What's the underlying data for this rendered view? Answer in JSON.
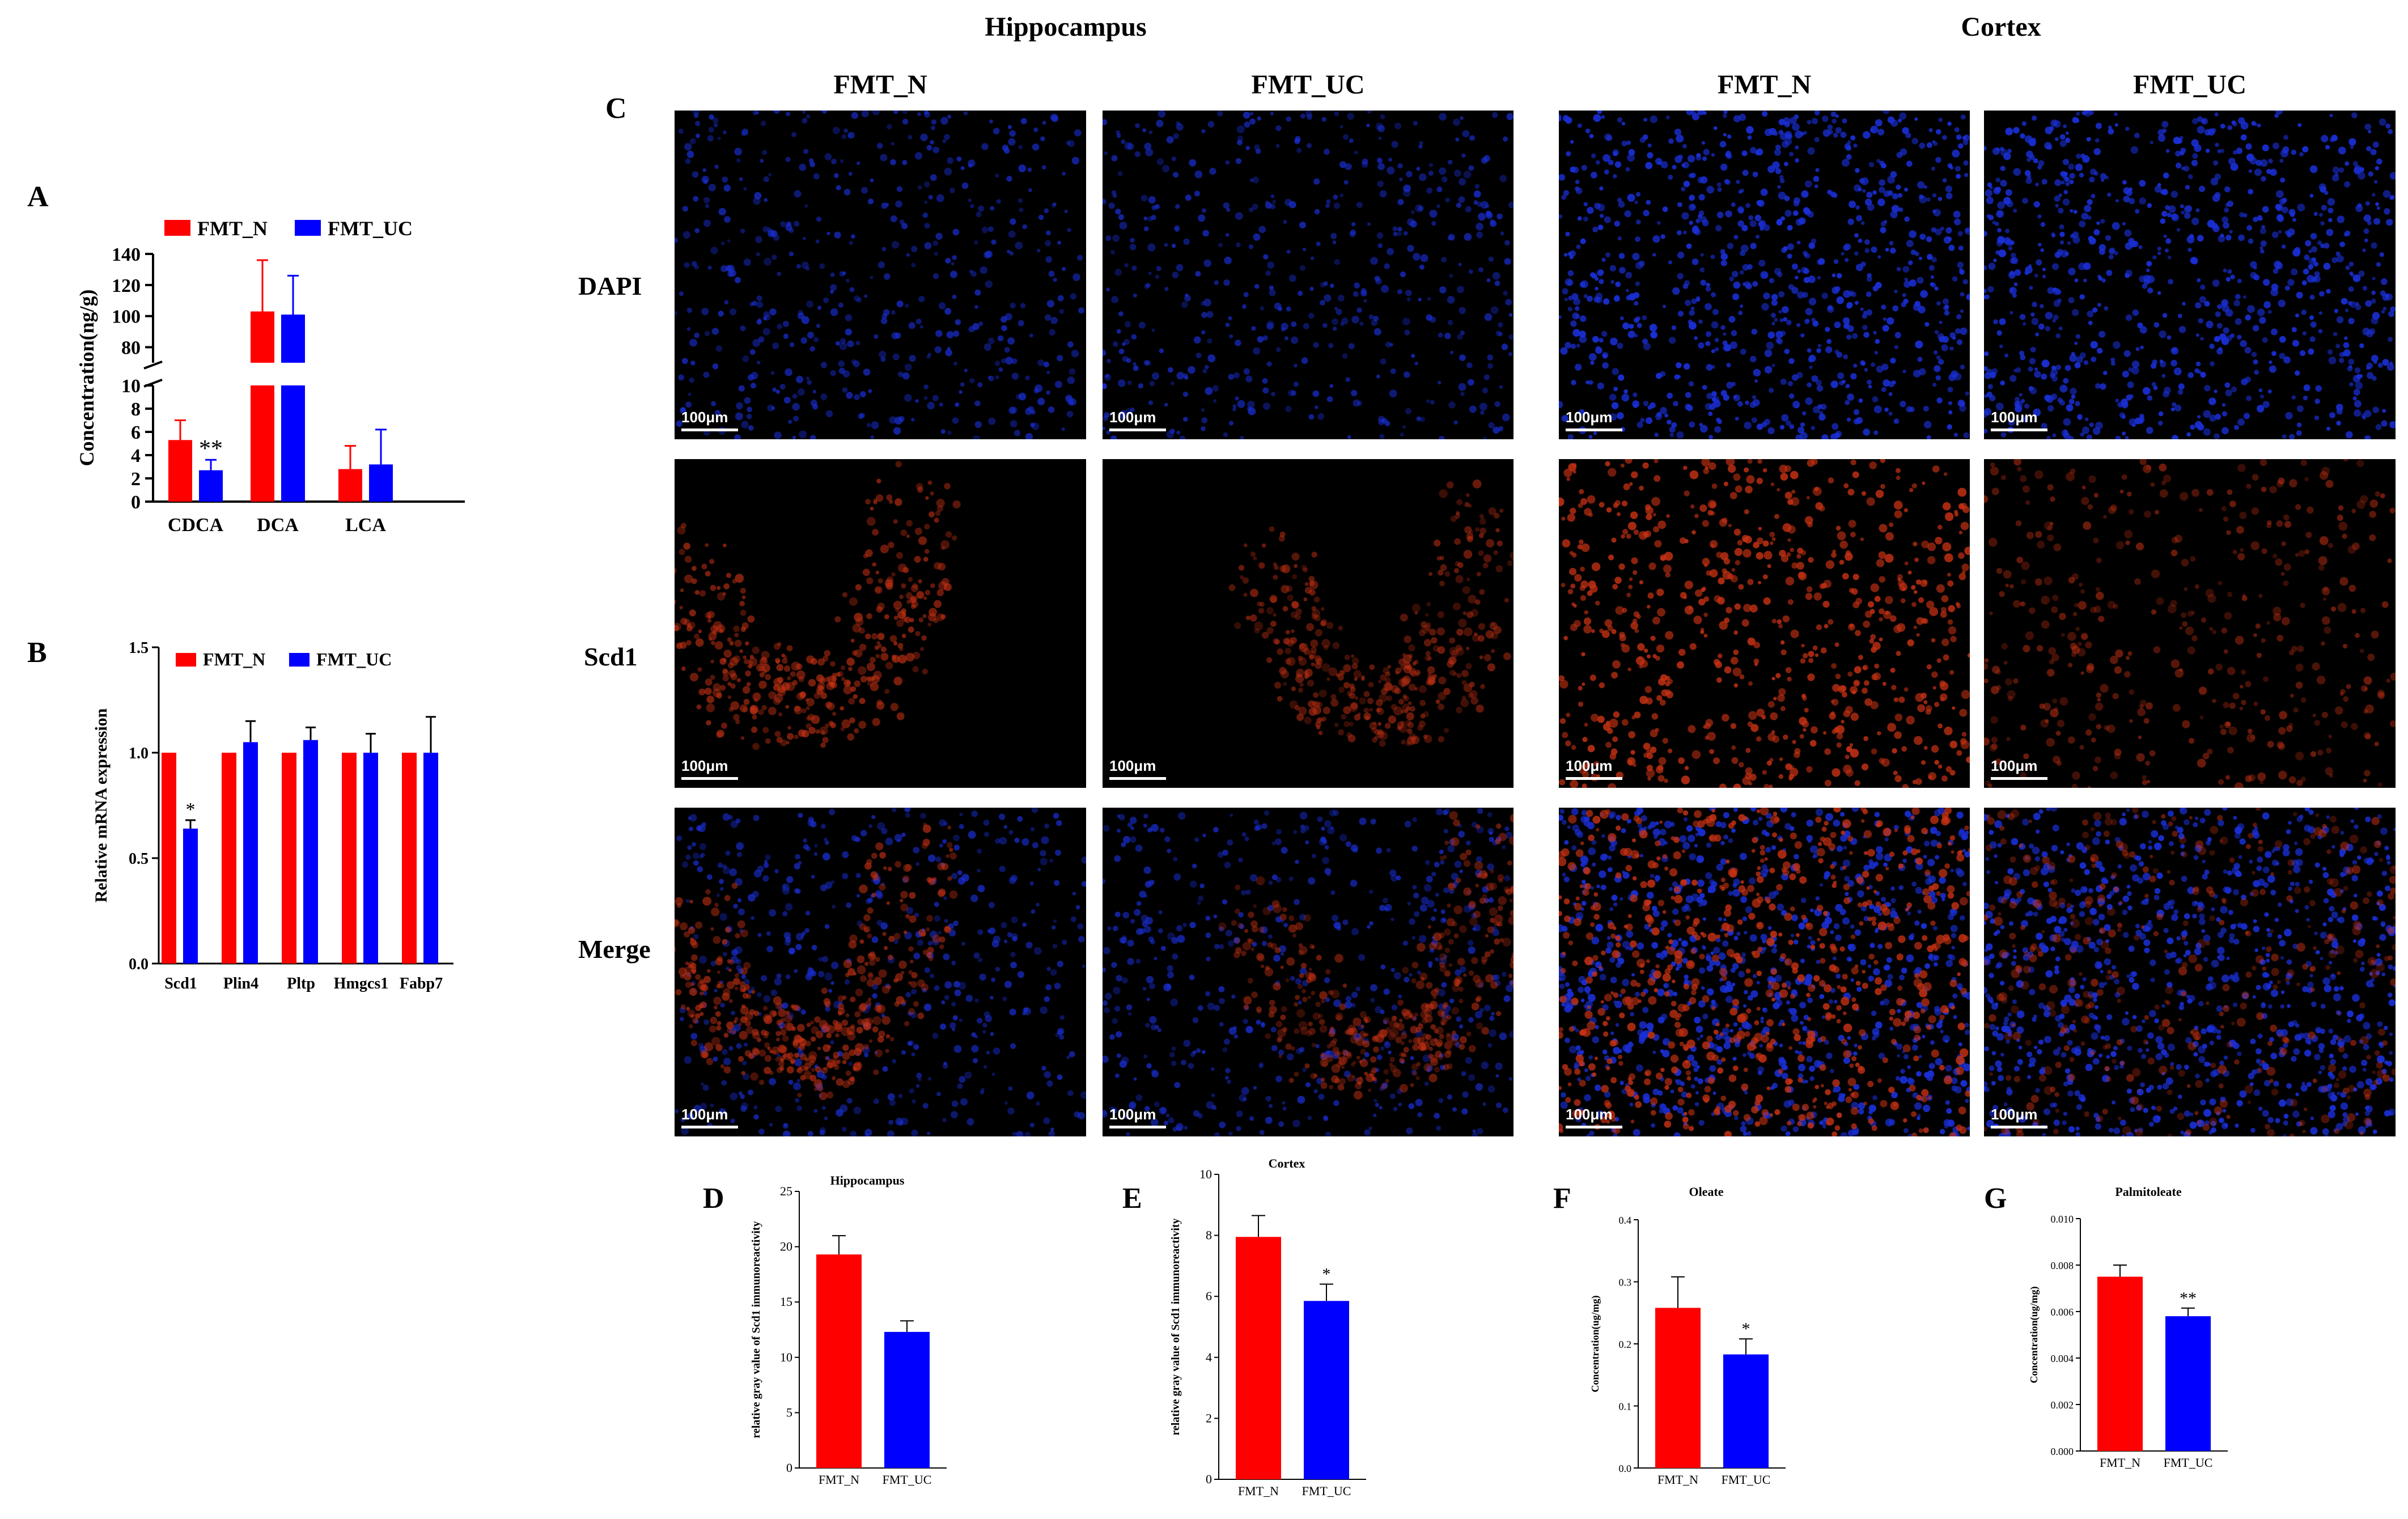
{
  "labels": {
    "A": "A",
    "B": "B",
    "C": "C",
    "D": "D",
    "E": "E",
    "F": "F",
    "G": "G"
  },
  "section_headers": {
    "hippocampus": "Hippocampus",
    "cortex": "Cortex"
  },
  "column_headers": [
    "FMT_N",
    "FMT_UC",
    "FMT_N",
    "FMT_UC"
  ],
  "row_labels": [
    "DAPI",
    "Scd1",
    "Merge"
  ],
  "scale_bar": "100μm",
  "colors": {
    "fmt_n": "#ff0000",
    "fmt_uc": "#0000ff",
    "dapi": "#1a2fd6",
    "scd1": "#c83214"
  },
  "chart_data": [
    {
      "id": "A",
      "type": "bar",
      "categories": [
        "CDCA",
        "DCA",
        "LCA"
      ],
      "series": [
        {
          "name": "FMT_N",
          "values": [
            5.3,
            103,
            2.8
          ],
          "errors": [
            1.7,
            33,
            2.0
          ]
        },
        {
          "name": "FMT_UC",
          "values": [
            2.7,
            101,
            3.2
          ],
          "errors": [
            0.9,
            25,
            3.0
          ]
        }
      ],
      "ylabel": "Concentration(ng/g)",
      "y_break": [
        10,
        70
      ],
      "yticks_lower": [
        0,
        2,
        4,
        6,
        8,
        10
      ],
      "yticks_upper": [
        80,
        100,
        120,
        140
      ],
      "annotations": [
        {
          "category": "CDCA",
          "series": "FMT_UC",
          "text": "**"
        }
      ],
      "legend": "top"
    },
    {
      "id": "B",
      "type": "bar",
      "categories": [
        "Scd1",
        "Plin4",
        "Pltp",
        "Hmgcs1",
        "Fabp7"
      ],
      "series": [
        {
          "name": "FMT_N",
          "values": [
            1.0,
            1.0,
            1.0,
            1.0,
            1.0
          ],
          "errors": [
            0,
            0,
            0,
            0,
            0
          ]
        },
        {
          "name": "FMT_UC",
          "values": [
            0.64,
            1.05,
            1.06,
            1.0,
            1.0
          ],
          "errors": [
            0.04,
            0.1,
            0.06,
            0.09,
            0.17
          ]
        }
      ],
      "ylabel": "Relative  mRNA expression",
      "ylim": [
        0,
        1.5
      ],
      "yticks": [
        "0.0",
        "0.5",
        "1.0",
        "1.5"
      ],
      "annotations": [
        {
          "category": "Scd1",
          "series": "FMT_UC",
          "text": "*"
        }
      ],
      "legend": "top"
    },
    {
      "id": "D",
      "type": "bar",
      "title": "Hippocampus",
      "categories": [
        "FMT_N",
        "FMT_UC"
      ],
      "values": [
        19.3,
        12.3
      ],
      "errors": [
        1.7,
        1.0
      ],
      "ylabel": "relative gray value of Scd1 immunoreactivity",
      "ylim": [
        0,
        25
      ],
      "yticks": [
        "0",
        "5",
        "10",
        "15",
        "20",
        "25"
      ],
      "annotations": []
    },
    {
      "id": "E",
      "type": "bar",
      "title": "Cortex",
      "categories": [
        "FMT_N",
        "FMT_UC"
      ],
      "values": [
        7.95,
        5.85
      ],
      "errors": [
        0.7,
        0.55
      ],
      "ylabel": "relative gray value of Scd1 immunoreactivity",
      "ylim": [
        0,
        10
      ],
      "yticks": [
        "0",
        "2",
        "4",
        "6",
        "8",
        "10"
      ],
      "annotations": [
        {
          "index": 1,
          "text": "*"
        }
      ]
    },
    {
      "id": "F",
      "type": "bar",
      "title": "Oleate",
      "categories": [
        "FMT_N",
        "FMT_UC"
      ],
      "values": [
        0.258,
        0.183
      ],
      "errors": [
        0.05,
        0.025
      ],
      "ylabel": "Concentration(ug/mg)",
      "ylim": [
        0,
        0.4
      ],
      "yticks": [
        "0.0",
        "0.1",
        "0.2",
        "0.3",
        "0.4"
      ],
      "annotations": [
        {
          "index": 1,
          "text": "*"
        }
      ]
    },
    {
      "id": "G",
      "type": "bar",
      "title": "Palmitoleate",
      "categories": [
        "FMT_N",
        "FMT_UC"
      ],
      "values": [
        0.0075,
        0.0058
      ],
      "errors": [
        0.0005,
        0.00035
      ],
      "ylabel": "Concentration(ug/mg)",
      "ylim": [
        0,
        0.01
      ],
      "yticks": [
        "0.000",
        "0.002",
        "0.004",
        "0.006",
        "0.008",
        "0.010"
      ],
      "annotations": [
        {
          "index": 1,
          "text": "**"
        }
      ]
    }
  ]
}
